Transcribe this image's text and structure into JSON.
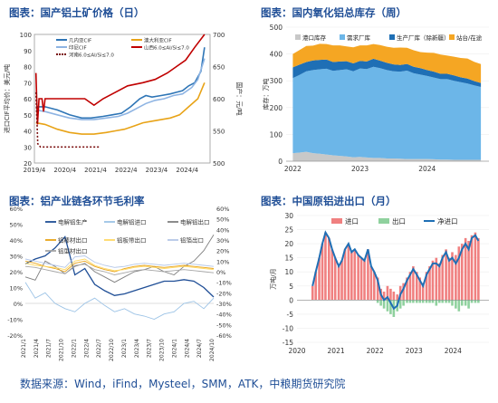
{
  "source": "数据来源：Wind，iFind，Mysteel，SMM，ATK，中粮期货研究院",
  "chart_data": [
    {
      "type": "line",
      "title": "图表：国产铝土矿价格（日）",
      "ylabel": "进口CIF平均价：美元/吨",
      "y2label": "国产：元/吨",
      "ylim": [
        20,
        100
      ],
      "y2lim": [
        500,
        700
      ],
      "yticks": [
        20,
        30,
        40,
        50,
        60,
        70,
        80,
        90,
        100
      ],
      "y2ticks": [
        500,
        550,
        600,
        650,
        700
      ],
      "xticks": [
        "2019/4",
        "2020/4",
        "2021/4",
        "2022/4",
        "2023/4",
        "2024/4"
      ],
      "xrange": [
        2019.25,
        2025.0
      ],
      "legend": [
        "几内亚CIF",
        "澳大利亚CIF",
        "印尼CIF",
        "山西6.0≤Al/Si≤7.0",
        "河南6.0≤Al/Si≤7.0"
      ],
      "series": [
        {
          "name": "几内亚CIF",
          "axis": "left",
          "color": "#2e75b6",
          "x": [
            2019.3,
            2019.6,
            2020.0,
            2020.4,
            2020.8,
            2021.1,
            2021.5,
            2021.8,
            2022.1,
            2022.4,
            2022.7,
            2022.9,
            2023.1,
            2023.4,
            2023.7,
            2023.9,
            2024.1,
            2024.3,
            2024.5,
            2024.7,
            2024.82
          ],
          "y": [
            55,
            55,
            53,
            50,
            48,
            48,
            49,
            50,
            51,
            55,
            60,
            62,
            61,
            62,
            63,
            64,
            65,
            68,
            70,
            77,
            92
          ]
        },
        {
          "name": "澳大利亚CIF",
          "axis": "left",
          "color": "#e8a317",
          "x": [
            2019.3,
            2019.6,
            2020.0,
            2020.4,
            2020.8,
            2021.2,
            2021.6,
            2021.9,
            2022.2,
            2022.5,
            2022.8,
            2023.1,
            2023.4,
            2023.7,
            2024.0,
            2024.3,
            2024.6,
            2024.82
          ],
          "y": [
            45,
            44,
            41,
            39,
            38,
            38,
            39,
            40,
            41,
            43,
            45,
            46,
            47,
            48,
            50,
            55,
            60,
            70
          ]
        },
        {
          "name": "印尼CIF",
          "axis": "left",
          "color": "#8eb4e3",
          "x": [
            2019.3,
            2019.6,
            2020.0,
            2020.4,
            2020.8,
            2021.2,
            2021.6,
            2022.0,
            2022.3,
            2022.6,
            2022.9,
            2023.2,
            2023.5,
            2023.8,
            2024.1,
            2024.4,
            2024.6,
            2024.82
          ],
          "y": [
            53,
            52,
            50,
            48,
            47,
            47,
            48,
            49,
            51,
            54,
            57,
            59,
            60,
            62,
            63,
            67,
            72,
            85
          ]
        },
        {
          "name": "山西6.0≤Al/Si≤7.0",
          "axis": "right",
          "color": "#c00000",
          "x": [
            2019.3,
            2019.35,
            2019.4,
            2019.5,
            2019.55,
            2019.6,
            2020.2,
            2020.9,
            2021.2,
            2021.5,
            2021.9,
            2022.3,
            2022.8,
            2023.2,
            2023.6,
            2023.9,
            2024.2,
            2024.5,
            2024.82
          ],
          "y": [
            640,
            560,
            600,
            600,
            580,
            600,
            600,
            600,
            590,
            600,
            610,
            620,
            625,
            630,
            640,
            650,
            660,
            680,
            700
          ]
        },
        {
          "name": "河南6.0≤Al/Si≤7.0",
          "axis": "right",
          "color": "#7b1010",
          "dashed": true,
          "x": [
            2019.3,
            2019.36,
            2019.45,
            2019.6,
            2020.4,
            2021.0,
            2021.4
          ],
          "y": [
            610,
            530,
            525,
            525,
            525,
            525,
            525
          ]
        }
      ]
    },
    {
      "type": "area",
      "title": "图表：国内氧化铝总库存（周）",
      "ylabel": "库存：万吨",
      "ylim": [
        0,
        500
      ],
      "yticks": [
        0,
        100,
        200,
        300,
        400,
        500
      ],
      "xticks": [
        "2022",
        "2023",
        "2024"
      ],
      "xrange": [
        2021.9,
        2024.92
      ],
      "legend": [
        "港口库存",
        "需求厂库",
        "生产厂库（除新疆）",
        "站台/在途"
      ],
      "x": [
        2022.0,
        2022.1,
        2022.2,
        2022.3,
        2022.4,
        2022.5,
        2022.6,
        2022.7,
        2022.8,
        2022.9,
        2023.0,
        2023.1,
        2023.2,
        2023.3,
        2023.4,
        2023.5,
        2023.6,
        2023.7,
        2023.8,
        2023.9,
        2024.0,
        2024.1,
        2024.2,
        2024.3,
        2024.4,
        2024.5,
        2024.6,
        2024.7,
        2024.8
      ],
      "series": [
        {
          "name": "港口库存",
          "color": "#c8c8c8",
          "values": [
            30,
            32,
            35,
            30,
            28,
            25,
            22,
            20,
            18,
            15,
            16,
            14,
            12,
            12,
            10,
            10,
            9,
            8,
            8,
            8,
            8,
            7,
            6,
            6,
            5,
            5,
            5,
            5,
            5
          ]
        },
        {
          "name": "需求厂库",
          "color": "#6cb6e8",
          "values": [
            280,
            290,
            300,
            310,
            315,
            320,
            315,
            320,
            325,
            320,
            330,
            330,
            340,
            335,
            330,
            325,
            325,
            330,
            320,
            315,
            310,
            305,
            300,
            300,
            295,
            290,
            285,
            278,
            272
          ]
        },
        {
          "name": "生产厂库（除新疆）",
          "color": "#1f6fb5",
          "values": [
            40,
            38,
            35,
            36,
            35,
            34,
            33,
            32,
            30,
            30,
            28,
            28,
            30,
            28,
            27,
            26,
            25,
            25,
            24,
            24,
            22,
            22,
            20,
            20,
            20,
            18,
            18,
            16,
            15
          ]
        },
        {
          "name": "站台/在途",
          "color": "#f5a623",
          "values": [
            50,
            55,
            60,
            55,
            60,
            58,
            62,
            60,
            55,
            60,
            58,
            60,
            55,
            58,
            60,
            62,
            65,
            60,
            62,
            60,
            65,
            70,
            72,
            68,
            70,
            72,
            75,
            72,
            70
          ]
        }
      ]
    },
    {
      "type": "line",
      "title": "图表：铝产业链各环节毛利率",
      "ylim": [
        -20,
        60
      ],
      "y2lim": [
        -60,
        60
      ],
      "yticks": [
        "-20%",
        "-10%",
        "0%",
        "10%",
        "20%",
        "30%",
        "40%",
        "50%",
        "60%"
      ],
      "y2ticks": [
        "-60%",
        "-50%",
        "-40%",
        "-30%",
        "-20%",
        "-10%",
        "0%",
        "10%",
        "20%",
        "30%",
        "40%",
        "50%",
        "60%"
      ],
      "xticks": [
        "2021/1",
        "2021/4",
        "2021/7",
        "2021/10",
        "2022/1",
        "2022/4",
        "2022/7",
        "2022/10",
        "2023/1",
        "2023/4",
        "2023/7",
        "2023/10",
        "2024/1",
        "2024/4",
        "2024/7",
        "2024/10"
      ],
      "legend": [
        "电解铝生产",
        "电解铝进口",
        "电解铝出口",
        "铝棒材出口",
        "铝板带出口",
        "铝箔出口",
        "铝型材出口"
      ],
      "x": [
        2021.0,
        2021.2,
        2021.4,
        2021.6,
        2021.8,
        2022.0,
        2022.2,
        2022.4,
        2022.6,
        2022.8,
        2023.0,
        2023.2,
        2023.4,
        2023.6,
        2023.8,
        2024.0,
        2024.2,
        2024.4,
        2024.6,
        2024.8
      ],
      "series": [
        {
          "name": "电解铝生产",
          "axis": "left",
          "color": "#1f4e96",
          "values": [
            25,
            28,
            30,
            35,
            42,
            18,
            22,
            12,
            8,
            5,
            6,
            8,
            10,
            12,
            14,
            14,
            15,
            14,
            10,
            4
          ]
        },
        {
          "name": "电解铝进口",
          "axis": "right",
          "color": "#9cc3e6",
          "values": [
            -10,
            -25,
            -20,
            -30,
            -35,
            -38,
            -30,
            -25,
            -32,
            -38,
            -35,
            -40,
            -42,
            -45,
            -40,
            -38,
            -30,
            -28,
            -35,
            -25
          ]
        },
        {
          "name": "电解铝出口",
          "axis": "right",
          "color": "#7f7f7f",
          "values": [
            -5,
            -8,
            10,
            5,
            -2,
            5,
            8,
            0,
            -5,
            -10,
            -5,
            0,
            2,
            5,
            0,
            -3,
            5,
            10,
            20,
            35
          ]
        },
        {
          "name": "铝棒材出口",
          "axis": "right",
          "color": "#e8a317",
          "values": [
            10,
            8,
            5,
            3,
            0,
            8,
            10,
            5,
            2,
            0,
            3,
            5,
            6,
            5,
            4,
            5,
            6,
            5,
            4,
            3
          ]
        },
        {
          "name": "铝板带出口",
          "axis": "right",
          "color": "#ffd966",
          "values": [
            8,
            6,
            5,
            4,
            2,
            10,
            12,
            6,
            3,
            1,
            2,
            4,
            5,
            4,
            3,
            4,
            5,
            4,
            3,
            2
          ]
        },
        {
          "name": "铝箔出口",
          "axis": "right",
          "color": "#b4c7e7",
          "values": [
            12,
            10,
            8,
            6,
            4,
            14,
            15,
            9,
            6,
            4,
            5,
            7,
            8,
            7,
            6,
            7,
            8,
            7,
            6,
            5
          ]
        },
        {
          "name": "铝型材出口",
          "axis": "right",
          "color": "#a6a6a6",
          "values": [
            5,
            4,
            2,
            0,
            -2,
            6,
            7,
            2,
            0,
            -3,
            -1,
            1,
            2,
            1,
            0,
            1,
            2,
            1,
            0,
            -1
          ]
        }
      ]
    },
    {
      "type": "bar",
      "title": "图表：中国原铝进出口（月）",
      "ylabel": "万吨/月",
      "ylim": [
        -15,
        30
      ],
      "yticks": [
        -15,
        -10,
        -5,
        0,
        5,
        10,
        15,
        20,
        25,
        30
      ],
      "xticks": [
        "2020",
        "2021",
        "2022",
        "2023",
        "2024"
      ],
      "xrange": [
        2020.0,
        2024.92
      ],
      "legend": [
        "进口",
        "出口",
        "净进口"
      ],
      "months": [
        2020.4,
        2020.48,
        2020.57,
        2020.65,
        2020.73,
        2020.82,
        2020.9,
        2020.98,
        2021.07,
        2021.15,
        2021.23,
        2021.32,
        2021.4,
        2021.48,
        2021.57,
        2021.65,
        2021.73,
        2021.82,
        2021.9,
        2021.98,
        2022.07,
        2022.15,
        2022.23,
        2022.32,
        2022.4,
        2022.48,
        2022.57,
        2022.65,
        2022.73,
        2022.82,
        2022.9,
        2022.98,
        2023.07,
        2023.15,
        2023.23,
        2023.32,
        2023.4,
        2023.48,
        2023.57,
        2023.65,
        2023.73,
        2023.82,
        2023.9,
        2023.98,
        2024.07,
        2024.15,
        2024.23,
        2024.32,
        2024.4,
        2024.48,
        2024.57,
        2024.65
      ],
      "series": [
        {
          "name": "进口",
          "color": "#f08080",
          "values": [
            5,
            10,
            15,
            20,
            24,
            22,
            18,
            15,
            12,
            14,
            18,
            20,
            17,
            18,
            16,
            15,
            14,
            18,
            12,
            10,
            8,
            4,
            3,
            5,
            4,
            3,
            2,
            5,
            6,
            8,
            10,
            12,
            10,
            8,
            6,
            10,
            12,
            14,
            15,
            13,
            16,
            18,
            15,
            17,
            16,
            19,
            20,
            22,
            21,
            23,
            24,
            22
          ]
        },
        {
          "name": "出口",
          "color": "#8fd19e",
          "values": [
            0,
            0,
            0,
            0,
            0,
            0,
            0,
            0,
            0,
            0,
            0,
            0,
            0,
            0,
            0,
            0,
            0,
            0,
            0,
            0,
            -1,
            -2,
            -3,
            -4,
            -5,
            -6,
            -4,
            -3,
            -2,
            -1,
            -1,
            -1,
            -1,
            -1,
            -1,
            -1,
            -1,
            -1,
            -2,
            -1,
            -1,
            -1,
            -1,
            -2,
            -3,
            -4,
            -2,
            -2,
            -3,
            -1,
            -1,
            -1
          ]
        },
        {
          "name": "净进口",
          "color": "#1f6fb5",
          "values": [
            5,
            10,
            15,
            20,
            24,
            22,
            18,
            15,
            12,
            14,
            18,
            20,
            17,
            18,
            16,
            15,
            14,
            18,
            12,
            10,
            7,
            2,
            0,
            1,
            -1,
            -3,
            -2,
            2,
            4,
            7,
            9,
            11,
            9,
            7,
            5,
            9,
            11,
            13,
            13,
            12,
            15,
            17,
            14,
            15,
            13,
            15,
            18,
            20,
            18,
            22,
            23,
            21
          ]
        }
      ]
    }
  ]
}
